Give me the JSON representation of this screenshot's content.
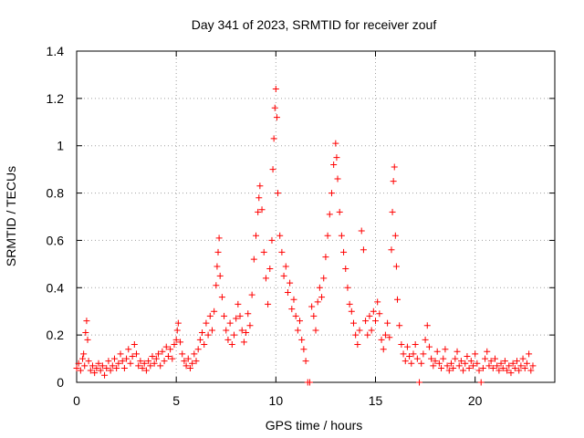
{
  "chart_data": {
    "type": "scatter",
    "title": "Day 341 of 2023, SRMTID for receiver zouf",
    "xlabel": "GPS time / hours",
    "ylabel": "SRMTID / TECUs",
    "xlim": [
      0,
      24
    ],
    "ylim": [
      0,
      1.4
    ],
    "x_ticks": [
      0,
      5,
      10,
      15,
      20
    ],
    "x_tick_labels": [
      "0",
      "5",
      "10",
      "15",
      "20"
    ],
    "y_ticks": [
      0,
      0.2,
      0.4,
      0.6,
      0.8,
      1.0,
      1.2,
      1.4
    ],
    "y_tick_labels": [
      "0",
      "0.2",
      "0.4",
      "0.6",
      "0.8",
      "1",
      "1.2",
      "1.4"
    ],
    "grid": true,
    "marker": "+",
    "series": [
      {
        "name": "SRMTID",
        "color": "#ff0000",
        "points": [
          [
            0.0,
            0.06
          ],
          [
            0.1,
            0.08
          ],
          [
            0.2,
            0.05
          ],
          [
            0.3,
            0.1
          ],
          [
            0.35,
            0.12
          ],
          [
            0.4,
            0.07
          ],
          [
            0.45,
            0.21
          ],
          [
            0.5,
            0.26
          ],
          [
            0.55,
            0.18
          ],
          [
            0.6,
            0.09
          ],
          [
            0.7,
            0.05
          ],
          [
            0.8,
            0.07
          ],
          [
            0.9,
            0.04
          ],
          [
            1.0,
            0.06
          ],
          [
            1.1,
            0.08
          ],
          [
            1.2,
            0.05
          ],
          [
            1.3,
            0.07
          ],
          [
            1.4,
            0.03
          ],
          [
            1.5,
            0.06
          ],
          [
            1.6,
            0.09
          ],
          [
            1.7,
            0.05
          ],
          [
            1.8,
            0.07
          ],
          [
            1.9,
            0.1
          ],
          [
            2.0,
            0.06
          ],
          [
            2.1,
            0.08
          ],
          [
            2.2,
            0.12
          ],
          [
            2.3,
            0.09
          ],
          [
            2.4,
            0.06
          ],
          [
            2.5,
            0.1
          ],
          [
            2.6,
            0.14
          ],
          [
            2.7,
            0.08
          ],
          [
            2.8,
            0.11
          ],
          [
            2.9,
            0.16
          ],
          [
            3.0,
            0.12
          ],
          [
            3.1,
            0.07
          ],
          [
            3.2,
            0.09
          ],
          [
            3.3,
            0.06
          ],
          [
            3.4,
            0.08
          ],
          [
            3.5,
            0.05
          ],
          [
            3.6,
            0.09
          ],
          [
            3.7,
            0.07
          ],
          [
            3.8,
            0.11
          ],
          [
            3.9,
            0.08
          ],
          [
            4.0,
            0.1
          ],
          [
            4.1,
            0.12
          ],
          [
            4.2,
            0.07
          ],
          [
            4.3,
            0.13
          ],
          [
            4.4,
            0.09
          ],
          [
            4.5,
            0.15
          ],
          [
            4.6,
            0.11
          ],
          [
            4.7,
            0.14
          ],
          [
            4.8,
            0.1
          ],
          [
            4.9,
            0.16
          ],
          [
            5.0,
            0.18
          ],
          [
            5.05,
            0.22
          ],
          [
            5.1,
            0.25
          ],
          [
            5.2,
            0.17
          ],
          [
            5.3,
            0.12
          ],
          [
            5.4,
            0.09
          ],
          [
            5.5,
            0.07
          ],
          [
            5.6,
            0.1
          ],
          [
            5.7,
            0.06
          ],
          [
            5.8,
            0.08
          ],
          [
            5.9,
            0.12
          ],
          [
            6.0,
            0.09
          ],
          [
            6.1,
            0.14
          ],
          [
            6.2,
            0.18
          ],
          [
            6.3,
            0.21
          ],
          [
            6.4,
            0.16
          ],
          [
            6.5,
            0.25
          ],
          [
            6.6,
            0.2
          ],
          [
            6.7,
            0.28
          ],
          [
            6.8,
            0.22
          ],
          [
            6.9,
            0.3
          ],
          [
            7.0,
            0.41
          ],
          [
            7.05,
            0.49
          ],
          [
            7.1,
            0.55
          ],
          [
            7.15,
            0.61
          ],
          [
            7.2,
            0.45
          ],
          [
            7.3,
            0.36
          ],
          [
            7.4,
            0.28
          ],
          [
            7.5,
            0.22
          ],
          [
            7.6,
            0.18
          ],
          [
            7.7,
            0.25
          ],
          [
            7.8,
            0.16
          ],
          [
            7.9,
            0.2
          ],
          [
            8.0,
            0.27
          ],
          [
            8.1,
            0.33
          ],
          [
            8.2,
            0.28
          ],
          [
            8.3,
            0.22
          ],
          [
            8.4,
            0.17
          ],
          [
            8.5,
            0.21
          ],
          [
            8.6,
            0.29
          ],
          [
            8.7,
            0.24
          ],
          [
            8.8,
            0.37
          ],
          [
            8.9,
            0.52
          ],
          [
            9.0,
            0.62
          ],
          [
            9.1,
            0.72
          ],
          [
            9.15,
            0.78
          ],
          [
            9.2,
            0.83
          ],
          [
            9.3,
            0.73
          ],
          [
            9.4,
            0.55
          ],
          [
            9.5,
            0.44
          ],
          [
            9.6,
            0.33
          ],
          [
            9.7,
            0.48
          ],
          [
            9.8,
            0.6
          ],
          [
            9.85,
            0.9
          ],
          [
            9.9,
            1.03
          ],
          [
            9.95,
            1.16
          ],
          [
            10.0,
            1.24
          ],
          [
            10.05,
            1.12
          ],
          [
            10.1,
            0.8
          ],
          [
            10.2,
            0.62
          ],
          [
            10.3,
            0.55
          ],
          [
            10.4,
            0.45
          ],
          [
            10.5,
            0.49
          ],
          [
            10.6,
            0.38
          ],
          [
            10.7,
            0.42
          ],
          [
            10.8,
            0.31
          ],
          [
            10.9,
            0.35
          ],
          [
            11.0,
            0.28
          ],
          [
            11.1,
            0.22
          ],
          [
            11.2,
            0.26
          ],
          [
            11.3,
            0.18
          ],
          [
            11.4,
            0.14
          ],
          [
            11.5,
            0.09
          ],
          [
            11.6,
            0.0
          ],
          [
            11.7,
            0.0
          ],
          [
            11.8,
            0.32
          ],
          [
            11.9,
            0.28
          ],
          [
            12.0,
            0.22
          ],
          [
            12.1,
            0.34
          ],
          [
            12.2,
            0.4
          ],
          [
            12.3,
            0.36
          ],
          [
            12.4,
            0.44
          ],
          [
            12.5,
            0.53
          ],
          [
            12.6,
            0.62
          ],
          [
            12.7,
            0.71
          ],
          [
            12.8,
            0.8
          ],
          [
            12.9,
            0.92
          ],
          [
            13.0,
            1.01
          ],
          [
            13.05,
            0.95
          ],
          [
            13.1,
            0.86
          ],
          [
            13.2,
            0.72
          ],
          [
            13.3,
            0.62
          ],
          [
            13.4,
            0.55
          ],
          [
            13.5,
            0.48
          ],
          [
            13.6,
            0.4
          ],
          [
            13.7,
            0.33
          ],
          [
            13.8,
            0.3
          ],
          [
            13.9,
            0.25
          ],
          [
            14.0,
            0.2
          ],
          [
            14.1,
            0.16
          ],
          [
            14.2,
            0.22
          ],
          [
            14.3,
            0.64
          ],
          [
            14.4,
            0.56
          ],
          [
            14.5,
            0.26
          ],
          [
            14.6,
            0.2
          ],
          [
            14.7,
            0.28
          ],
          [
            14.8,
            0.22
          ],
          [
            14.9,
            0.3
          ],
          [
            15.0,
            0.26
          ],
          [
            15.1,
            0.34
          ],
          [
            15.2,
            0.29
          ],
          [
            15.3,
            0.18
          ],
          [
            15.4,
            0.14
          ],
          [
            15.5,
            0.2
          ],
          [
            15.6,
            0.25
          ],
          [
            15.7,
            0.19
          ],
          [
            15.8,
            0.56
          ],
          [
            15.85,
            0.72
          ],
          [
            15.9,
            0.85
          ],
          [
            15.95,
            0.91
          ],
          [
            16.0,
            0.62
          ],
          [
            16.05,
            0.49
          ],
          [
            16.1,
            0.35
          ],
          [
            16.2,
            0.24
          ],
          [
            16.3,
            0.16
          ],
          [
            16.4,
            0.12
          ],
          [
            16.5,
            0.09
          ],
          [
            16.6,
            0.15
          ],
          [
            16.7,
            0.11
          ],
          [
            16.8,
            0.08
          ],
          [
            16.9,
            0.12
          ],
          [
            17.0,
            0.16
          ],
          [
            17.1,
            0.1
          ],
          [
            17.2,
            0.0
          ],
          [
            17.3,
            0.08
          ],
          [
            17.4,
            0.12
          ],
          [
            17.5,
            0.18
          ],
          [
            17.6,
            0.24
          ],
          [
            17.7,
            0.15
          ],
          [
            17.8,
            0.1
          ],
          [
            17.9,
            0.07
          ],
          [
            18.0,
            0.09
          ],
          [
            18.1,
            0.13
          ],
          [
            18.2,
            0.08
          ],
          [
            18.3,
            0.06
          ],
          [
            18.4,
            0.1
          ],
          [
            18.5,
            0.14
          ],
          [
            18.6,
            0.07
          ],
          [
            18.7,
            0.05
          ],
          [
            18.8,
            0.08
          ],
          [
            18.9,
            0.06
          ],
          [
            19.0,
            0.1
          ],
          [
            19.1,
            0.13
          ],
          [
            19.2,
            0.07
          ],
          [
            19.3,
            0.09
          ],
          [
            19.4,
            0.05
          ],
          [
            19.5,
            0.08
          ],
          [
            19.6,
            0.11
          ],
          [
            19.7,
            0.06
          ],
          [
            19.8,
            0.09
          ],
          [
            19.9,
            0.07
          ],
          [
            20.0,
            0.12
          ],
          [
            20.1,
            0.08
          ],
          [
            20.2,
            0.05
          ],
          [
            20.3,
            0.0
          ],
          [
            20.4,
            0.06
          ],
          [
            20.5,
            0.1
          ],
          [
            20.6,
            0.13
          ],
          [
            20.7,
            0.07
          ],
          [
            20.8,
            0.09
          ],
          [
            20.9,
            0.06
          ],
          [
            21.0,
            0.1
          ],
          [
            21.1,
            0.07
          ],
          [
            21.2,
            0.05
          ],
          [
            21.3,
            0.08
          ],
          [
            21.4,
            0.06
          ],
          [
            21.5,
            0.09
          ],
          [
            21.6,
            0.05
          ],
          [
            21.7,
            0.07
          ],
          [
            21.8,
            0.04
          ],
          [
            21.9,
            0.08
          ],
          [
            22.0,
            0.06
          ],
          [
            22.1,
            0.09
          ],
          [
            22.2,
            0.05
          ],
          [
            22.3,
            0.07
          ],
          [
            22.4,
            0.1
          ],
          [
            22.5,
            0.06
          ],
          [
            22.6,
            0.08
          ],
          [
            22.7,
            0.12
          ],
          [
            22.8,
            0.05
          ],
          [
            22.9,
            0.07
          ]
        ]
      }
    ]
  }
}
